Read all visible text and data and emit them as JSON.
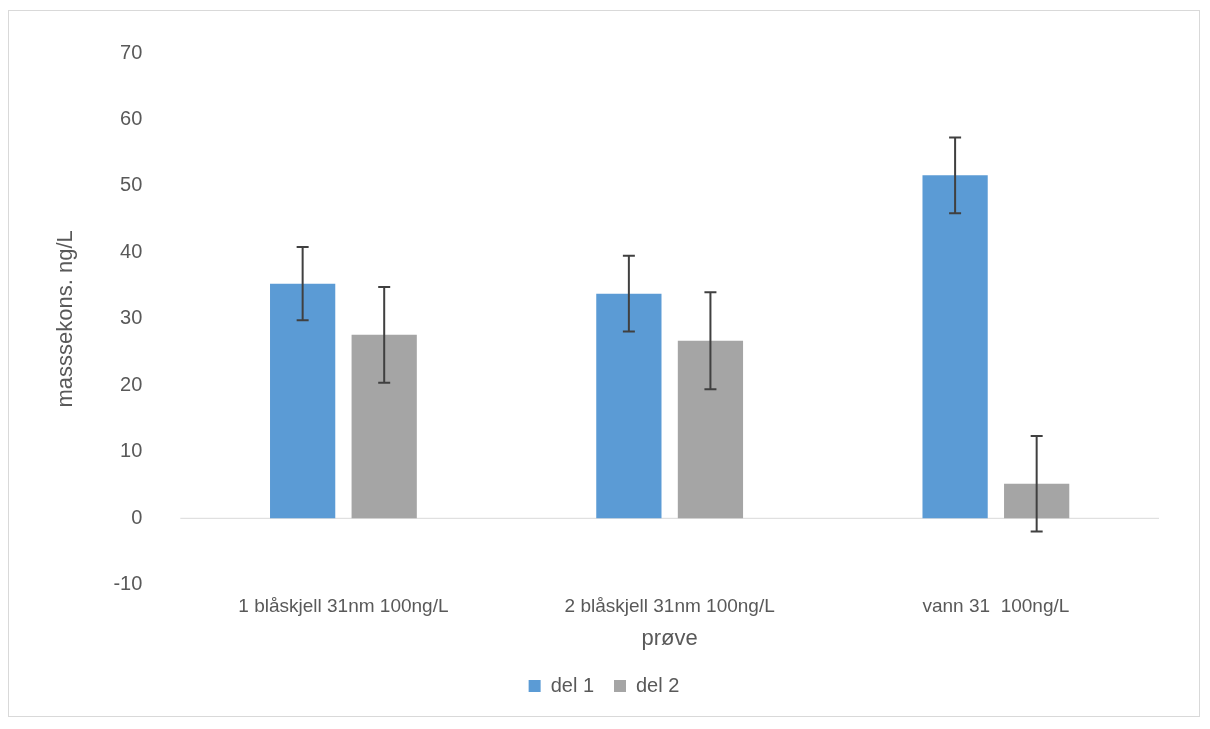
{
  "chart_data": {
    "type": "bar",
    "xlabel": "prøve",
    "ylabel": "masssekons. ng/L",
    "categories": [
      "1 blåskjell 31nm 100ng/L",
      "2 blåskjell 31nm 100ng/L",
      "vann 31  100ng/L"
    ],
    "series": [
      {
        "name": "del 1",
        "color": "#5b9bd5",
        "values": [
          35.3,
          33.8,
          51.6
        ],
        "errors": [
          5.5,
          5.7,
          5.7
        ]
      },
      {
        "name": "del 2",
        "color": "#a5a5a5",
        "values": [
          27.6,
          26.7,
          5.2
        ],
        "errors": [
          7.2,
          7.3,
          7.2
        ]
      }
    ],
    "ylim": [
      -10,
      70
    ],
    "yticks": [
      -10,
      0,
      10,
      20,
      30,
      40,
      50,
      60,
      70
    ],
    "ref_lines": [
      {
        "axis": "y",
        "value": 0,
        "color": "#d9d9d9"
      }
    ],
    "legend": "bottom"
  }
}
